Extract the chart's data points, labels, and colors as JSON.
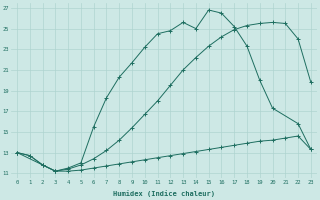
{
  "xlabel": "Humidex (Indice chaleur)",
  "background_color": "#cde8e5",
  "grid_color": "#afd4d0",
  "line_color": "#1e6e60",
  "xlim": [
    -0.5,
    23.5
  ],
  "ylim": [
    10.5,
    27.5
  ],
  "xticks": [
    0,
    1,
    2,
    3,
    4,
    5,
    6,
    7,
    8,
    9,
    10,
    11,
    12,
    13,
    14,
    15,
    16,
    17,
    18,
    19,
    20,
    21,
    22,
    23
  ],
  "yticks": [
    11,
    13,
    15,
    17,
    19,
    21,
    23,
    25,
    27
  ],
  "series1_x": [
    0,
    1,
    2,
    3,
    4,
    5,
    6,
    7,
    8,
    9,
    10,
    11,
    12,
    13,
    14,
    15,
    16,
    17,
    18,
    19,
    20,
    21,
    22,
    23
  ],
  "series1_y": [
    13.0,
    12.7,
    11.8,
    11.2,
    11.2,
    11.3,
    11.5,
    11.7,
    11.9,
    12.1,
    12.3,
    12.5,
    12.7,
    12.9,
    13.1,
    13.3,
    13.5,
    13.7,
    13.9,
    14.1,
    14.2,
    14.4,
    14.6,
    13.3
  ],
  "series2_x": [
    0,
    1,
    2,
    3,
    4,
    5,
    6,
    7,
    8,
    9,
    10,
    11,
    12,
    13,
    14,
    15,
    16,
    17,
    18,
    19,
    20,
    21,
    22,
    23
  ],
  "series2_y": [
    13.0,
    12.7,
    11.8,
    11.2,
    11.4,
    11.8,
    12.4,
    13.2,
    14.2,
    15.4,
    16.7,
    18.0,
    19.5,
    21.0,
    22.2,
    23.3,
    24.2,
    24.9,
    25.3,
    25.5,
    25.6,
    25.5,
    24.0,
    19.8
  ],
  "series3_x": [
    0,
    2,
    3,
    4,
    5,
    6,
    7,
    8,
    9,
    10,
    11,
    12,
    13,
    14,
    15,
    16,
    17,
    18,
    19,
    20,
    22,
    23
  ],
  "series3_y": [
    13.0,
    11.8,
    11.2,
    11.5,
    12.0,
    15.5,
    18.3,
    20.3,
    21.7,
    23.2,
    24.5,
    24.8,
    25.6,
    25.0,
    26.8,
    26.5,
    25.2,
    23.3,
    20.0,
    17.3,
    15.8,
    13.3
  ]
}
